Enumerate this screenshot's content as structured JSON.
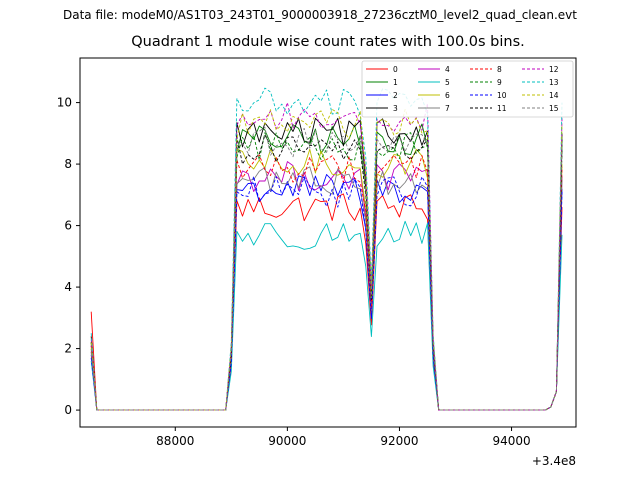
{
  "suptitle": "Data file: modeM0/AS1T03_243T01_9000003918_27236cztM0_level2_quad_clean.evt",
  "chart_data": {
    "type": "line",
    "title": "Quadrant 1 module wise count rates with 100.0s bins.",
    "xlabel": "",
    "ylabel": "",
    "x_offset_label": "+3.4e8",
    "xlim": [
      86300,
      95150
    ],
    "ylim": [
      -0.55,
      11.45
    ],
    "xticks": [
      88000,
      90000,
      92000,
      94000
    ],
    "yticks": [
      0,
      2,
      4,
      6,
      8,
      10
    ],
    "grid": false,
    "legend_position": "top-right",
    "x": [
      86500,
      86600,
      86700,
      86800,
      86900,
      87000,
      87100,
      87200,
      87300,
      87400,
      87500,
      87600,
      87700,
      87800,
      87900,
      88000,
      88100,
      88200,
      88300,
      88400,
      88500,
      88600,
      88700,
      88800,
      88900,
      89000,
      89100,
      89200,
      89300,
      89400,
      89500,
      89600,
      89700,
      89800,
      89900,
      90000,
      90100,
      90200,
      90300,
      90400,
      90500,
      90600,
      90700,
      90800,
      90900,
      91000,
      91100,
      91200,
      91300,
      91400,
      91500,
      91600,
      91700,
      91800,
      91900,
      92000,
      92100,
      92200,
      92300,
      92400,
      92500,
      92600,
      92700,
      92800,
      92900,
      93000,
      93100,
      93200,
      93300,
      93400,
      93500,
      93600,
      93700,
      93800,
      93900,
      94000,
      94100,
      94200,
      94300,
      94400,
      94500,
      94600,
      94700,
      94800,
      94900
    ],
    "series": [
      {
        "name": "0",
        "color": "#ff0000",
        "dash": false,
        "base": 6.6,
        "start": 3.2
      },
      {
        "name": "1",
        "color": "#008000",
        "dash": false,
        "base": 8.8,
        "start": 2.1
      },
      {
        "name": "2",
        "color": "#0000ff",
        "dash": false,
        "base": 7.2,
        "start": 1.8
      },
      {
        "name": "3",
        "color": "#000000",
        "dash": false,
        "base": 9.0,
        "start": 2.2
      },
      {
        "name": "4",
        "color": "#bf00bf",
        "dash": false,
        "base": 7.6,
        "start": 1.9
      },
      {
        "name": "5",
        "color": "#00bfbf",
        "dash": false,
        "base": 5.7,
        "start": 1.6
      },
      {
        "name": "6",
        "color": "#bfbf00",
        "dash": false,
        "base": 8.0,
        "start": 2.0
      },
      {
        "name": "7",
        "color": "#808080",
        "dash": false,
        "base": 7.5,
        "start": 1.9
      },
      {
        "name": "8",
        "color": "#ff0000",
        "dash": true,
        "base": 7.9,
        "start": 2.1
      },
      {
        "name": "9",
        "color": "#008000",
        "dash": true,
        "base": 8.6,
        "start": 2.2
      },
      {
        "name": "10",
        "color": "#0000ff",
        "dash": true,
        "base": 7.1,
        "start": 1.7
      },
      {
        "name": "11",
        "color": "#000000",
        "dash": true,
        "base": 8.5,
        "start": 2.4
      },
      {
        "name": "12",
        "color": "#bf00bf",
        "dash": true,
        "base": 9.5,
        "start": 2.3
      },
      {
        "name": "13",
        "color": "#00bfbf",
        "dash": true,
        "base": 10.0,
        "start": 2.5
      },
      {
        "name": "14",
        "color": "#bfbf00",
        "dash": true,
        "base": 9.3,
        "start": 2.2
      },
      {
        "name": "15",
        "color": "#808080",
        "dash": true,
        "base": 8.7,
        "start": 2.0
      }
    ]
  }
}
